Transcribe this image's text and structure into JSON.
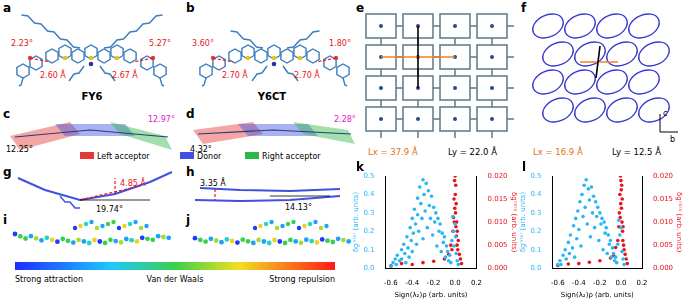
{
  "panels": {
    "a": {
      "label": "a",
      "name": "FY6",
      "angles": [
        "2.23°",
        "5.27°"
      ],
      "distances": [
        "2.60 Å",
        "2.67 Å"
      ]
    },
    "b": {
      "label": "b",
      "name": "Y6CT",
      "angles": [
        "3.60°",
        "1.80°"
      ],
      "distances": [
        "2.70 Å",
        "2.70 Å"
      ]
    },
    "c": {
      "label": "c",
      "angles": [
        "12.25°",
        "12.97°"
      ]
    },
    "d": {
      "label": "d",
      "angles": [
        "4.32°",
        "2.28°"
      ]
    },
    "e": {
      "label": "e",
      "lx": "Lx = 37.9 Å",
      "ly": "Ly = 22.0 Å"
    },
    "f": {
      "label": "f",
      "lx": "Lx = 16.9 Å",
      "ly": "Ly = 12.5 Å",
      "axes": [
        "b",
        "c"
      ]
    },
    "g": {
      "label": "g",
      "angle": "19.74°",
      "distance": "4.85 Å"
    },
    "h": {
      "label": "h",
      "distance": "3.35 Å",
      "angle": "14.13°"
    },
    "i": {
      "label": "i"
    },
    "j": {
      "label": "j"
    }
  },
  "legend": [
    {
      "name": "Left acceptor",
      "color": "#e53935"
    },
    {
      "name": "Donor",
      "color": "#3f51e0"
    },
    {
      "name": "Right acceptor",
      "color": "#2eb84a"
    }
  ],
  "colorbar": {
    "labels": [
      "Strong attraction",
      "Van der Waals",
      "Strong repulsion"
    ]
  },
  "chart_data": [
    {
      "type": "scatter",
      "panel": "k",
      "xlabel": "Sign(λ₂)ρ (arb. units)",
      "ylabel": "δgⁱⁿᵗᵉʳ (arb. units)",
      "y2label": "δgⁱⁿᵗʳᵃ (arb. units)",
      "xlim": [
        -0.65,
        0.2
      ],
      "xticks": [
        -0.6,
        -0.4,
        -0.2,
        {
          "value": 0,
          "label": "0.0"
        },
        0.2
      ],
      "ylim": [
        0,
        0.5
      ],
      "yticks": [
        {
          "value": 0,
          "label": "0.0"
        },
        0.1,
        0.2,
        0.3,
        0.4,
        0.5
      ],
      "y2lim": [
        0,
        0.02
      ],
      "y2ticks": [
        {
          "value": 0,
          "label": "0.000"
        },
        {
          "value": 0.005,
          "label": "0.005"
        },
        {
          "value": 0.01,
          "label": "0.010"
        },
        {
          "value": 0.015,
          "label": "0.015"
        },
        {
          "value": 0.02,
          "label": "0.020"
        }
      ],
      "grid": false,
      "series": [
        {
          "color": "#29b6f6",
          "axis": "y",
          "marker": "circle",
          "x": [
            -0.6,
            -0.58,
            -0.56,
            -0.55,
            -0.54,
            -0.52,
            -0.5,
            -0.5,
            -0.48,
            -0.47,
            -0.46,
            -0.45,
            -0.44,
            -0.43,
            -0.42,
            -0.41,
            -0.4,
            -0.4,
            -0.39,
            -0.38,
            -0.37,
            -0.36,
            -0.35,
            -0.35,
            -0.34,
            -0.33,
            -0.32,
            -0.31,
            -0.3,
            -0.3,
            -0.29,
            -0.28,
            -0.27,
            -0.26,
            -0.25,
            -0.24,
            -0.23,
            -0.22,
            -0.21,
            -0.2,
            -0.19,
            -0.18,
            -0.17,
            -0.16,
            -0.15,
            -0.14,
            -0.13,
            -0.12,
            -0.11,
            -0.1,
            -0.09,
            -0.08,
            -0.07,
            -0.06,
            -0.05,
            -0.04,
            -0.03,
            -0.02,
            -0.015,
            -0.01,
            0,
            0.005,
            0.01,
            0.02,
            0.03
          ],
          "values": [
            0.01,
            0.03,
            0.05,
            0.02,
            0.07,
            0.04,
            0.1,
            0.05,
            0.13,
            0.08,
            0.03,
            0.17,
            0.11,
            0.06,
            0.22,
            0.15,
            0.27,
            0.09,
            0.19,
            0.32,
            0.24,
            0.13,
            0.38,
            0.29,
            0.2,
            0.44,
            0.35,
            0.27,
            0.48,
            0.16,
            0.4,
            0.31,
            0.46,
            0.22,
            0.42,
            0.34,
            0.27,
            0.39,
            0.18,
            0.33,
            0.25,
            0.3,
            0.12,
            0.27,
            0.2,
            0.24,
            0.09,
            0.19,
            0.14,
            0.17,
            0.06,
            0.12,
            0.09,
            0.04,
            0.07,
            0.03,
            0.15,
            0.28,
            0.2,
            0.12,
            0.24,
            0.17,
            0.08,
            0.04,
            0.02
          ]
        },
        {
          "color": "#e8141c",
          "axis": "y2",
          "marker": "circle",
          "x": [
            -0.6,
            -0.5,
            -0.4,
            -0.3,
            -0.2,
            -0.1,
            -0.06,
            -0.04,
            -0.03,
            -0.02,
            -0.015,
            -0.01,
            -0.008,
            -0.005,
            -0.003,
            0,
            0.002,
            0.004,
            0.006,
            0.008,
            0.01,
            0.012,
            0.015,
            0.018,
            0.02,
            0.025,
            0.03,
            0.04,
            0.05,
            0.06
          ],
          "values": [
            0.0005,
            0.001,
            0.0008,
            0.0012,
            0.0015,
            0.002,
            0.003,
            0.005,
            0.004,
            0.008,
            0.011,
            0.015,
            0.01,
            0.019,
            0.013,
            0.02,
            0.016,
            0.012,
            0.018,
            0.009,
            0.014,
            0.007,
            0.01,
            0.005,
            0.008,
            0.004,
            0.006,
            0.003,
            0.002,
            0.001
          ]
        }
      ]
    },
    {
      "type": "scatter",
      "panel": "l",
      "xlabel": "Sign(λ₂)ρ (arb. units)",
      "ylabel": "δgⁱⁿᵗᵉʳ (arb. units)",
      "y2label": "δgⁱⁿᵗʳᵃ (arb. units)",
      "xlim": [
        -0.65,
        0.2
      ],
      "xticks": [
        -0.6,
        -0.4,
        -0.2,
        {
          "value": 0,
          "label": "0.0"
        },
        0.2
      ],
      "ylim": [
        0,
        0.5
      ],
      "yticks": [
        {
          "value": 0,
          "label": "0.0"
        },
        0.1,
        0.2,
        0.3,
        0.4,
        0.5
      ],
      "y2lim": [
        0,
        0.02
      ],
      "y2ticks": [
        {
          "value": 0,
          "label": "0.000"
        },
        {
          "value": 0.005,
          "label": "0.005"
        },
        {
          "value": 0.01,
          "label": "0.010"
        },
        {
          "value": 0.015,
          "label": "0.015"
        },
        {
          "value": 0.02,
          "label": "0.020"
        }
      ],
      "grid": false,
      "series": [
        {
          "color": "#29b6f6",
          "axis": "y",
          "marker": "circle",
          "x": [
            -0.6,
            -0.58,
            -0.57,
            -0.55,
            -0.53,
            -0.52,
            -0.5,
            -0.49,
            -0.48,
            -0.46,
            -0.45,
            -0.44,
            -0.43,
            -0.42,
            -0.41,
            -0.4,
            -0.39,
            -0.38,
            -0.37,
            -0.36,
            -0.35,
            -0.34,
            -0.33,
            -0.32,
            -0.31,
            -0.3,
            -0.29,
            -0.28,
            -0.27,
            -0.26,
            -0.25,
            -0.24,
            -0.23,
            -0.22,
            -0.21,
            -0.2,
            -0.19,
            -0.18,
            -0.17,
            -0.16,
            -0.15,
            -0.14,
            -0.13,
            -0.12,
            -0.11,
            -0.1,
            -0.09,
            -0.08,
            -0.07,
            -0.06,
            -0.05,
            -0.04,
            -0.03,
            -0.02,
            -0.01,
            0,
            0.01,
            0.02,
            0.03
          ],
          "values": [
            0.02,
            0.04,
            0.02,
            0.07,
            0.1,
            0.05,
            0.14,
            0.08,
            0.18,
            0.11,
            0.23,
            0.06,
            0.27,
            0.16,
            0.31,
            0.21,
            0.36,
            0.12,
            0.4,
            0.28,
            0.45,
            0.33,
            0.48,
            0.24,
            0.43,
            0.37,
            0.17,
            0.44,
            0.3,
            0.39,
            0.22,
            0.36,
            0.28,
            0.33,
            0.15,
            0.3,
            0.24,
            0.27,
            0.1,
            0.25,
            0.19,
            0.22,
            0.08,
            0.18,
            0.13,
            0.15,
            0.06,
            0.11,
            0.08,
            0.04,
            0.06,
            0.03,
            0.13,
            0.26,
            0.18,
            0.22,
            0.09,
            0.05,
            0.02
          ]
        },
        {
          "color": "#e8141c",
          "axis": "y2",
          "marker": "circle",
          "x": [
            -0.6,
            -0.5,
            -0.4,
            -0.3,
            -0.2,
            -0.1,
            -0.07,
            -0.05,
            -0.03,
            -0.02,
            -0.015,
            -0.01,
            -0.007,
            -0.005,
            -0.002,
            0,
            0.003,
            0.005,
            0.007,
            0.01,
            0.012,
            0.015,
            0.018,
            0.02,
            0.025,
            0.03,
            0.04,
            0.05,
            0.06
          ],
          "values": [
            0.0006,
            0.0009,
            0.001,
            0.0013,
            0.0016,
            0.0022,
            0.0028,
            0.0045,
            0.006,
            0.009,
            0.012,
            0.016,
            0.011,
            0.02,
            0.014,
            0.019,
            0.017,
            0.013,
            0.018,
            0.01,
            0.015,
            0.008,
            0.006,
            0.009,
            0.005,
            0.004,
            0.003,
            0.002,
            0.001
          ]
        }
      ]
    }
  ]
}
